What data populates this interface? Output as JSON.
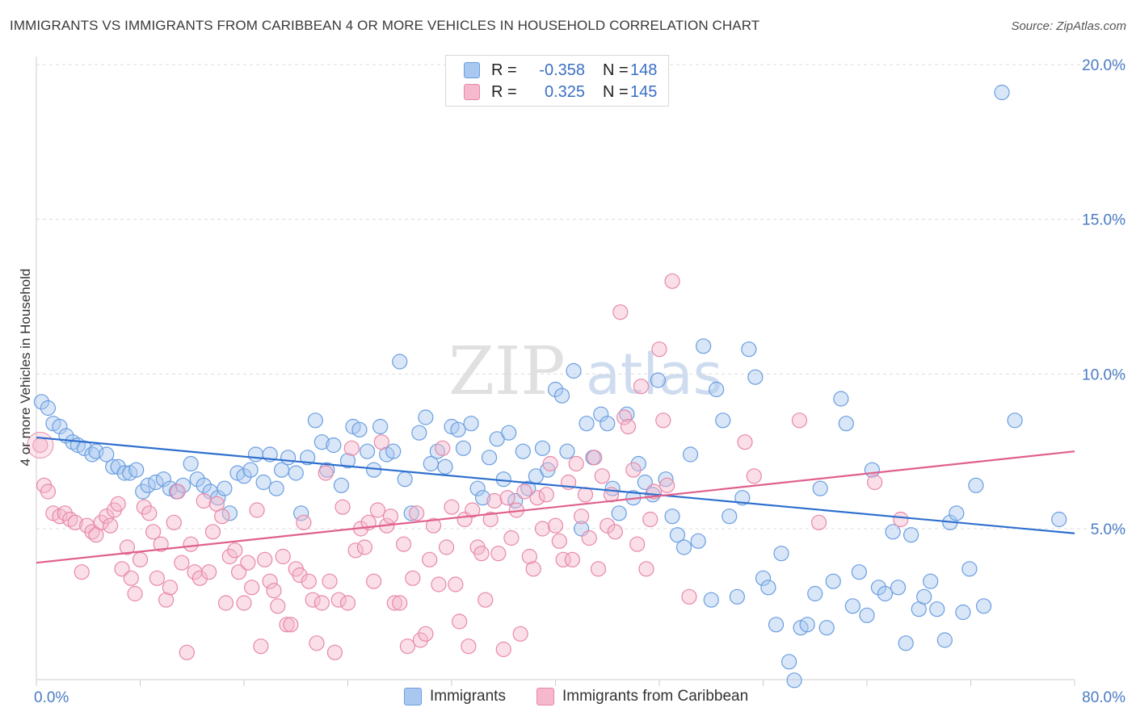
{
  "title": "IMMIGRANTS VS IMMIGRANTS FROM CARIBBEAN 4 OR MORE VEHICLES IN HOUSEHOLD CORRELATION CHART",
  "source": "Source: ZipAtlas.com",
  "watermark": {
    "zip": "ZIP",
    "atlas": "atlas"
  },
  "legend": {
    "rows": [
      {
        "r_label": "R =",
        "r_value": "-0.358",
        "n_label": "N =",
        "n_value": "148",
        "color": "#a8c8f0"
      },
      {
        "r_label": "R =",
        "r_value": "0.325",
        "n_label": "N =",
        "n_value": "145",
        "color": "#f5b8cc"
      }
    ]
  },
  "bottom_legend": [
    {
      "label": "Immigrants",
      "color": "#a8c8f0"
    },
    {
      "label": "Immigrants from Caribbean",
      "color": "#f5b8cc"
    }
  ],
  "chart_data": {
    "type": "scatter",
    "ylabel": "4 or more Vehicles in Household",
    "xlim": [
      0,
      80
    ],
    "ylim": [
      0,
      20.5
    ],
    "x_tick_labels": [
      {
        "value": 0,
        "label": "0.0%"
      },
      {
        "value": 80,
        "label": "80.0%"
      }
    ],
    "y_tick_labels": [
      {
        "value": 5,
        "label": "5.0%"
      },
      {
        "value": 10,
        "label": "10.0%"
      },
      {
        "value": 15,
        "label": "15.0%"
      },
      {
        "value": 20,
        "label": "20.0%"
      }
    ],
    "x_minor_ticks": [
      0,
      8,
      16,
      24,
      32,
      40,
      48,
      56,
      64,
      72,
      80
    ],
    "grid": "horizontal-dashed",
    "series": [
      {
        "name": "Immigrants",
        "color": "#6a9ee0",
        "fill": "#a8c8f0",
        "line_color": "#2e6fce",
        "trend": [
          [
            0,
            7.95
          ],
          [
            80,
            4.85
          ]
        ],
        "points": [
          [
            0.4,
            9.1
          ],
          [
            0.9,
            8.9
          ],
          [
            1.3,
            8.4
          ],
          [
            1.8,
            8.3
          ],
          [
            2.3,
            8.0
          ],
          [
            2.8,
            7.8
          ],
          [
            3.2,
            7.7
          ],
          [
            3.7,
            7.6
          ],
          [
            4.3,
            7.4
          ],
          [
            4.6,
            7.5
          ],
          [
            5.4,
            7.4
          ],
          [
            5.9,
            7.0
          ],
          [
            6.3,
            7.0
          ],
          [
            6.8,
            6.8
          ],
          [
            7.2,
            6.8
          ],
          [
            7.7,
            6.9
          ],
          [
            8.2,
            6.2
          ],
          [
            8.6,
            6.4
          ],
          [
            9.2,
            6.5
          ],
          [
            9.8,
            6.6
          ],
          [
            10.3,
            6.3
          ],
          [
            10.8,
            6.2
          ],
          [
            11.3,
            6.4
          ],
          [
            11.9,
            7.1
          ],
          [
            12.4,
            6.6
          ],
          [
            12.9,
            6.4
          ],
          [
            13.4,
            6.2
          ],
          [
            14.0,
            6.0
          ],
          [
            14.5,
            6.3
          ],
          [
            14.9,
            5.5
          ],
          [
            15.5,
            6.8
          ],
          [
            16.0,
            6.7
          ],
          [
            16.5,
            6.9
          ],
          [
            16.9,
            7.4
          ],
          [
            17.5,
            6.5
          ],
          [
            18.0,
            7.4
          ],
          [
            18.5,
            6.3
          ],
          [
            18.9,
            6.9
          ],
          [
            19.4,
            7.3
          ],
          [
            20.0,
            6.8
          ],
          [
            20.4,
            5.5
          ],
          [
            20.9,
            7.3
          ],
          [
            21.5,
            8.5
          ],
          [
            22.0,
            7.8
          ],
          [
            22.4,
            6.9
          ],
          [
            22.9,
            7.7
          ],
          [
            23.5,
            6.4
          ],
          [
            24.0,
            7.2
          ],
          [
            24.4,
            8.3
          ],
          [
            24.9,
            8.2
          ],
          [
            25.5,
            7.5
          ],
          [
            26.0,
            6.9
          ],
          [
            26.5,
            8.3
          ],
          [
            27.0,
            7.4
          ],
          [
            27.5,
            7.5
          ],
          [
            28.0,
            10.4
          ],
          [
            28.4,
            6.6
          ],
          [
            28.9,
            5.5
          ],
          [
            29.5,
            8.1
          ],
          [
            30.0,
            8.6
          ],
          [
            30.4,
            7.1
          ],
          [
            30.9,
            7.5
          ],
          [
            31.5,
            7.0
          ],
          [
            32.0,
            8.3
          ],
          [
            32.5,
            8.2
          ],
          [
            32.9,
            7.6
          ],
          [
            33.5,
            8.4
          ],
          [
            34.0,
            6.3
          ],
          [
            34.4,
            6.0
          ],
          [
            34.9,
            7.3
          ],
          [
            35.5,
            7.9
          ],
          [
            36.0,
            6.6
          ],
          [
            36.4,
            8.1
          ],
          [
            36.9,
            5.9
          ],
          [
            37.5,
            7.5
          ],
          [
            37.9,
            6.3
          ],
          [
            38.5,
            6.7
          ],
          [
            39.0,
            7.6
          ],
          [
            39.4,
            6.9
          ],
          [
            40.0,
            9.5
          ],
          [
            40.5,
            9.3
          ],
          [
            40.9,
            7.5
          ],
          [
            41.4,
            10.1
          ],
          [
            42.0,
            5.0
          ],
          [
            42.4,
            8.4
          ],
          [
            42.9,
            7.3
          ],
          [
            43.5,
            8.7
          ],
          [
            44.0,
            8.4
          ],
          [
            44.4,
            6.3
          ],
          [
            44.9,
            5.5
          ],
          [
            45.5,
            8.7
          ],
          [
            46.0,
            6.0
          ],
          [
            46.4,
            7.1
          ],
          [
            46.9,
            6.5
          ],
          [
            47.5,
            6.1
          ],
          [
            47.9,
            9.8
          ],
          [
            48.5,
            6.6
          ],
          [
            49.0,
            5.4
          ],
          [
            49.4,
            4.8
          ],
          [
            49.9,
            4.4
          ],
          [
            50.4,
            7.4
          ],
          [
            51.0,
            4.6
          ],
          [
            51.4,
            10.9
          ],
          [
            52.0,
            2.7
          ],
          [
            52.4,
            9.5
          ],
          [
            52.9,
            8.5
          ],
          [
            53.4,
            5.4
          ],
          [
            54.0,
            2.8
          ],
          [
            54.4,
            6.0
          ],
          [
            54.9,
            10.8
          ],
          [
            55.4,
            9.9
          ],
          [
            56.0,
            3.4
          ],
          [
            56.4,
            3.1
          ],
          [
            57.0,
            1.9
          ],
          [
            57.4,
            4.2
          ],
          [
            58.0,
            0.7
          ],
          [
            58.4,
            0.1
          ],
          [
            58.9,
            1.8
          ],
          [
            59.4,
            1.9
          ],
          [
            60.0,
            2.9
          ],
          [
            60.4,
            6.3
          ],
          [
            60.9,
            1.8
          ],
          [
            61.4,
            3.3
          ],
          [
            62.0,
            9.2
          ],
          [
            62.4,
            8.4
          ],
          [
            62.9,
            2.5
          ],
          [
            63.4,
            3.6
          ],
          [
            64.0,
            2.2
          ],
          [
            64.4,
            6.9
          ],
          [
            64.9,
            3.1
          ],
          [
            65.4,
            2.9
          ],
          [
            66.0,
            4.9
          ],
          [
            66.4,
            3.1
          ],
          [
            67.0,
            1.3
          ],
          [
            67.4,
            4.8
          ],
          [
            68.0,
            2.4
          ],
          [
            68.4,
            2.8
          ],
          [
            68.9,
            3.3
          ],
          [
            69.4,
            2.4
          ],
          [
            70.0,
            1.4
          ],
          [
            70.4,
            5.2
          ],
          [
            70.9,
            5.5
          ],
          [
            71.4,
            2.3
          ],
          [
            71.9,
            3.7
          ],
          [
            72.4,
            6.4
          ],
          [
            73.0,
            2.5
          ],
          [
            74.4,
            19.1
          ],
          [
            75.4,
            8.5
          ],
          [
            78.8,
            5.3
          ]
        ]
      },
      {
        "name": "Immigrants from Caribbean",
        "color": "#e888a8",
        "fill": "#f5b8cc",
        "line_color": "#e0608a",
        "trend": [
          [
            0,
            3.9
          ],
          [
            80,
            7.5
          ]
        ],
        "points": [
          [
            0.3,
            7.7
          ],
          [
            0.6,
            6.4
          ],
          [
            0.9,
            6.2
          ],
          [
            1.3,
            5.5
          ],
          [
            1.8,
            5.4
          ],
          [
            2.2,
            5.5
          ],
          [
            2.6,
            5.3
          ],
          [
            3.0,
            5.2
          ],
          [
            3.5,
            3.6
          ],
          [
            3.9,
            5.1
          ],
          [
            4.3,
            4.9
          ],
          [
            4.6,
            4.8
          ],
          [
            5.0,
            5.2
          ],
          [
            5.4,
            5.4
          ],
          [
            5.7,
            5.1
          ],
          [
            6.0,
            5.6
          ],
          [
            6.3,
            5.8
          ],
          [
            6.6,
            3.7
          ],
          [
            7.0,
            4.4
          ],
          [
            7.3,
            3.4
          ],
          [
            7.6,
            2.9
          ],
          [
            8.0,
            4.0
          ],
          [
            8.3,
            5.7
          ],
          [
            8.7,
            5.5
          ],
          [
            9.0,
            4.9
          ],
          [
            9.3,
            3.4
          ],
          [
            9.6,
            4.5
          ],
          [
            10.0,
            2.7
          ],
          [
            10.3,
            3.1
          ],
          [
            10.6,
            5.2
          ],
          [
            10.9,
            6.2
          ],
          [
            11.2,
            3.9
          ],
          [
            11.6,
            1.0
          ],
          [
            11.9,
            4.5
          ],
          [
            12.2,
            3.6
          ],
          [
            12.6,
            3.4
          ],
          [
            12.9,
            5.9
          ],
          [
            13.3,
            3.6
          ],
          [
            13.6,
            4.9
          ],
          [
            13.9,
            5.8
          ],
          [
            14.3,
            5.4
          ],
          [
            14.6,
            2.6
          ],
          [
            14.9,
            4.1
          ],
          [
            15.3,
            4.3
          ],
          [
            15.6,
            3.6
          ],
          [
            16.0,
            2.6
          ],
          [
            16.3,
            3.9
          ],
          [
            16.6,
            3.1
          ],
          [
            17.0,
            5.6
          ],
          [
            17.3,
            1.2
          ],
          [
            17.6,
            4.0
          ],
          [
            18.0,
            3.3
          ],
          [
            18.3,
            3.0
          ],
          [
            18.6,
            2.5
          ],
          [
            19.0,
            4.1
          ],
          [
            19.3,
            1.9
          ],
          [
            19.6,
            1.9
          ],
          [
            20.0,
            3.7
          ],
          [
            20.3,
            3.5
          ],
          [
            20.6,
            5.2
          ],
          [
            21.0,
            3.3
          ],
          [
            21.3,
            2.7
          ],
          [
            21.6,
            1.3
          ],
          [
            22.0,
            2.6
          ],
          [
            22.3,
            6.8
          ],
          [
            22.6,
            3.3
          ],
          [
            23.0,
            1.0
          ],
          [
            23.3,
            2.7
          ],
          [
            23.6,
            5.7
          ],
          [
            24.0,
            2.6
          ],
          [
            24.3,
            7.6
          ],
          [
            24.6,
            4.3
          ],
          [
            25.0,
            5.0
          ],
          [
            25.3,
            4.4
          ],
          [
            25.6,
            5.2
          ],
          [
            26.0,
            3.3
          ],
          [
            26.3,
            5.6
          ],
          [
            26.6,
            7.8
          ],
          [
            27.0,
            5.1
          ],
          [
            27.3,
            5.4
          ],
          [
            27.6,
            2.6
          ],
          [
            28.0,
            2.6
          ],
          [
            28.3,
            4.5
          ],
          [
            28.6,
            1.2
          ],
          [
            29.0,
            3.4
          ],
          [
            29.3,
            5.5
          ],
          [
            29.6,
            1.4
          ],
          [
            30.0,
            1.6
          ],
          [
            30.3,
            4.0
          ],
          [
            30.6,
            5.1
          ],
          [
            31.0,
            3.2
          ],
          [
            31.3,
            7.6
          ],
          [
            31.6,
            4.4
          ],
          [
            32.0,
            5.7
          ],
          [
            32.3,
            3.2
          ],
          [
            32.6,
            2.0
          ],
          [
            33.0,
            5.3
          ],
          [
            33.3,
            1.2
          ],
          [
            33.6,
            5.6
          ],
          [
            34.0,
            4.4
          ],
          [
            34.3,
            4.2
          ],
          [
            34.6,
            2.7
          ],
          [
            35.0,
            5.3
          ],
          [
            35.3,
            5.9
          ],
          [
            35.6,
            4.2
          ],
          [
            36.0,
            1.1
          ],
          [
            36.3,
            6.0
          ],
          [
            36.6,
            4.7
          ],
          [
            37.0,
            5.6
          ],
          [
            37.3,
            1.6
          ],
          [
            37.6,
            6.2
          ],
          [
            38.0,
            4.1
          ],
          [
            38.3,
            3.7
          ],
          [
            38.6,
            6.0
          ],
          [
            39.0,
            5.0
          ],
          [
            39.3,
            6.1
          ],
          [
            39.6,
            7.1
          ],
          [
            40.0,
            5.1
          ],
          [
            40.3,
            4.6
          ],
          [
            40.6,
            4.0
          ],
          [
            41.0,
            6.5
          ],
          [
            41.3,
            4.0
          ],
          [
            41.6,
            7.1
          ],
          [
            42.0,
            5.4
          ],
          [
            42.3,
            6.1
          ],
          [
            42.6,
            4.7
          ],
          [
            43.0,
            7.3
          ],
          [
            43.3,
            3.7
          ],
          [
            43.6,
            6.7
          ],
          [
            44.0,
            5.1
          ],
          [
            44.3,
            6.1
          ],
          [
            44.6,
            4.9
          ],
          [
            45.0,
            12.0
          ],
          [
            45.3,
            8.6
          ],
          [
            45.6,
            8.3
          ],
          [
            46.0,
            6.9
          ],
          [
            46.3,
            4.5
          ],
          [
            46.6,
            9.6
          ],
          [
            47.0,
            3.7
          ],
          [
            47.3,
            5.3
          ],
          [
            47.6,
            6.2
          ],
          [
            48.0,
            10.8
          ],
          [
            48.3,
            8.5
          ],
          [
            48.6,
            6.4
          ],
          [
            49.0,
            13.0
          ],
          [
            50.3,
            2.8
          ],
          [
            54.6,
            7.8
          ],
          [
            55.3,
            6.7
          ],
          [
            58.8,
            8.5
          ],
          [
            60.3,
            5.2
          ],
          [
            64.6,
            6.5
          ],
          [
            66.6,
            5.3
          ]
        ]
      }
    ]
  }
}
